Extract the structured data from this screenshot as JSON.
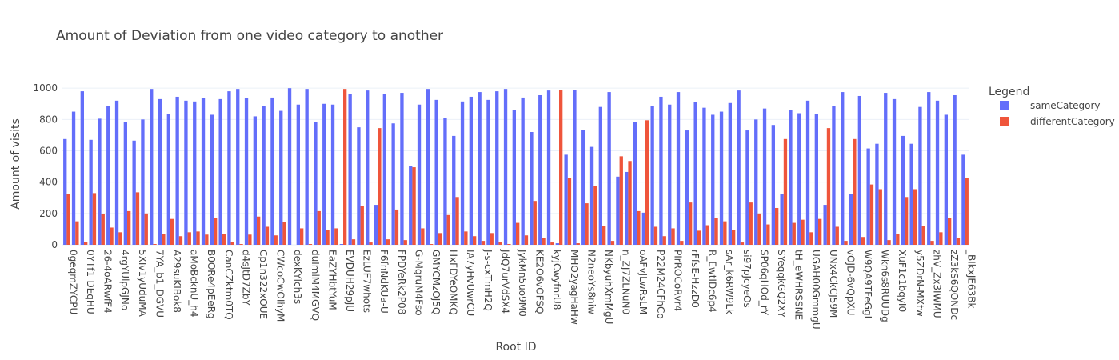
{
  "chart_data": {
    "type": "bar",
    "title": "Amount of Deviation from one video category to another",
    "x_label": "Root ID",
    "y_label": "Amount of visits",
    "legend_title": "Legend",
    "legend_position": "right",
    "grid": true,
    "categories": [
      "0geqmZYCPU",
      null,
      "0YTf1-DEqHU",
      null,
      "26-4oARwfF4",
      null,
      "4rgYUlpGJNo",
      null,
      "5XIv1yUduMA",
      null,
      "7YA_b1_DGVU",
      null,
      "A29suKIBok8",
      null,
      "aMoBcknU_h4",
      null,
      "B0ORe4pEeRg",
      null,
      "CanCZktm0TQ",
      null,
      "d4sJtD7ZbY",
      null,
      "Cp1n322xOUE",
      null,
      "CWcoCwOIhyM",
      null,
      "dexKYlch3s",
      null,
      "duImlM4MGVQ",
      null,
      "EaZYHbtYuM",
      null,
      "EVDUH29pJU",
      null,
      "EzLUF7whots",
      null,
      "F6fnNdKUa-U",
      null,
      "FPDYeRk2P08",
      null,
      "G-MgruM4Fso",
      null,
      "GMYCMzOJ5Q",
      null,
      "HxFDYeOMKQ",
      null,
      "IA7yHvUwrCU",
      null,
      "J-s-cxTmH2Q",
      null,
      "JdQ7urVdSX4",
      null,
      "JykMn5uo9M0",
      null,
      "KE2O6vOFSQ",
      null,
      "kyjCwyfnrU8",
      null,
      "MHO2yagHaHw",
      null,
      "N2neoYs8niw",
      null,
      "NKbyuhXmMgU",
      null,
      "n_ZJ7ZLNuN0",
      null,
      "oAFvJLwRsLM",
      null,
      "P22M24CFhCo",
      null,
      "PIrROCoRvr4",
      null,
      "rFfsE-HzzD0",
      null,
      "R_EwtIDc6p4",
      null,
      "sAr_k6RW9Lk",
      null,
      "si97pJcyeOs",
      null,
      "SP06qHOd_rY",
      null,
      "SYeqqkGQ2XY",
      null,
      "tH_eWHRSSNE",
      null,
      "UGAH00GmmgU",
      null,
      "UNx4CkCJ59M",
      null,
      "vOJD-6vQpXU",
      null,
      "W9QA9TFeGgI",
      null,
      "Wkn6s8RUUDg",
      null,
      "XuF1c1bqyI0",
      null,
      "y5ZDrN-MXtw",
      null,
      "zhV_Zx3IWMU",
      null,
      "zZ3kS6QONDc",
      null,
      "_BIkxJE63Bk"
    ],
    "series": [
      {
        "name": "sameCategory",
        "color": "#636efa",
        "values": [
          675,
          850,
          980,
          670,
          805,
          885,
          920,
          785,
          665,
          800,
          995,
          930,
          835,
          945,
          920,
          915,
          935,
          830,
          930,
          980,
          995,
          935,
          820,
          885,
          940,
          855,
          1000,
          895,
          995,
          785,
          900,
          895,
          5,
          965,
          750,
          985,
          255,
          965,
          775,
          970,
          505,
          895,
          995,
          925,
          810,
          695,
          915,
          945,
          975,
          925,
          980,
          995,
          860,
          940,
          720,
          955,
          985,
          10,
          575,
          990,
          735,
          625,
          880,
          975,
          435,
          465,
          785,
          205,
          885,
          945,
          895,
          975,
          730,
          910,
          875,
          830,
          850,
          905,
          985,
          730,
          800,
          870,
          765,
          325,
          860,
          840,
          920,
          835,
          255,
          885,
          975,
          325,
          950,
          615,
          645,
          970,
          930,
          695,
          645,
          880,
          975,
          920,
          830,
          955,
          575
        ]
      },
      {
        "name": "differentCategory",
        "color": "#ef553b",
        "values": [
          325,
          150,
          20,
          330,
          195,
          110,
          80,
          215,
          335,
          200,
          5,
          70,
          165,
          55,
          80,
          85,
          65,
          170,
          70,
          20,
          5,
          65,
          180,
          115,
          60,
          145,
          0,
          105,
          5,
          215,
          95,
          105,
          995,
          35,
          250,
          15,
          745,
          35,
          225,
          30,
          495,
          105,
          5,
          75,
          190,
          305,
          85,
          55,
          25,
          75,
          20,
          5,
          140,
          60,
          280,
          45,
          15,
          990,
          425,
          10,
          265,
          375,
          120,
          25,
          565,
          535,
          215,
          795,
          115,
          55,
          105,
          25,
          270,
          90,
          125,
          170,
          150,
          95,
          15,
          270,
          200,
          130,
          235,
          675,
          140,
          160,
          80,
          165,
          745,
          115,
          25,
          675,
          50,
          385,
          355,
          30,
          70,
          305,
          355,
          120,
          25,
          80,
          170,
          45,
          425
        ]
      }
    ],
    "ylim": [
      0,
      1052
    ],
    "yticks": [
      0,
      200,
      400,
      600,
      800,
      1000
    ]
  }
}
